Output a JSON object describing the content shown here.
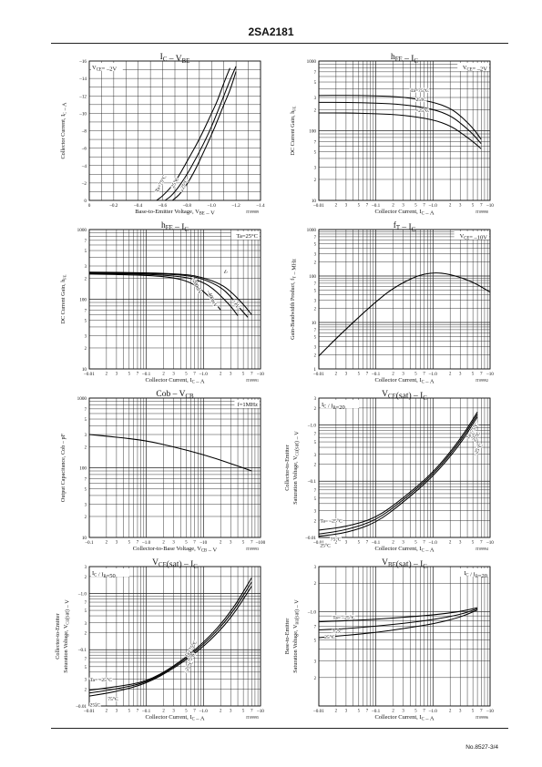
{
  "page": {
    "title": "2SA2181",
    "doc_number": "No.8527-3/4"
  },
  "chart_data": [
    {
      "type": "line",
      "title_main": "I",
      "title_sub": "C",
      "title_mid": " – V",
      "title_sub2": "BE",
      "xlabel": "Base-to-Emitter Voltage, V",
      "xlabel_sub": "BE",
      "xlabel_tail": " – V",
      "ylabel": "Collector Current, I",
      "ylabel_sub": "C",
      "ylabel_tail": " – A",
      "code": "IT09989",
      "xscale": "linear",
      "yscale": "linear",
      "xlim": [
        0,
        -1.4
      ],
      "ylim": [
        0,
        -16
      ],
      "xticks": [
        0,
        -0.2,
        -0.4,
        -0.6,
        -0.8,
        -1.0,
        -1.2,
        -1.4
      ],
      "xticklabels": [
        "0",
        "–0.2",
        "–0.4",
        "–0.6",
        "–0.8",
        "–1.0",
        "–1.2",
        "–1.4"
      ],
      "yticks": [
        0,
        -2,
        -4,
        -6,
        -8,
        -10,
        -12,
        -14,
        -16
      ],
      "yticklabels": [
        "0",
        "–2",
        "–4",
        "–6",
        "–8",
        "–10",
        "–12",
        "–14",
        "–16"
      ],
      "minor_x": 0.1,
      "minor_y": 1,
      "condition": "V<sub>CE</sub>= –2V",
      "condition_pos": "top-left",
      "series": [
        {
          "name": "Ta=75°C",
          "x": [
            -0.55,
            -0.6,
            -0.7,
            -0.8,
            -0.9,
            -1.0,
            -1.05,
            -1.1,
            -1.15
          ],
          "y": [
            0,
            -0.5,
            -2,
            -4.5,
            -7,
            -10,
            -11.5,
            -13.5,
            -15.2
          ]
        },
        {
          "name": "25°C",
          "x": [
            -0.62,
            -0.68,
            -0.78,
            -0.88,
            -0.98,
            -1.05,
            -1.1,
            -1.15,
            -1.2
          ],
          "y": [
            0,
            -0.6,
            -2.5,
            -5,
            -7.8,
            -10.2,
            -12,
            -13.8,
            -15.4
          ]
        },
        {
          "name": "–25°C",
          "x": [
            -0.68,
            -0.75,
            -0.85,
            -0.95,
            -1.03,
            -1.1,
            -1.15,
            -1.2
          ],
          "y": [
            0,
            -0.8,
            -3,
            -6,
            -8.5,
            -11,
            -12.6,
            -14.8
          ]
        }
      ],
      "labels": [
        {
          "text": "Ta=75°C",
          "x": -0.56,
          "y": -0.9,
          "angle": -62
        },
        {
          "text": "25°C",
          "x": -0.69,
          "y": -1.4,
          "angle": -62
        },
        {
          "text": "–25°C",
          "x": -0.76,
          "y": -1.0,
          "angle": -62
        }
      ]
    },
    {
      "type": "line",
      "title_main": "h",
      "title_sub": "FE",
      "title_mid": " – I",
      "title_sub2": "C",
      "xlabel": "Collector Current, I",
      "xlabel_sub": "C",
      "xlabel_tail": " – A",
      "ylabel": "DC Current Gain, h",
      "ylabel_sub": "FE",
      "ylabel_tail": "",
      "code": "IT09990",
      "xscale": "log",
      "yscale": "log",
      "xlim": [
        -0.01,
        -10
      ],
      "ylim": [
        10,
        1000
      ],
      "xmajor": [
        -0.01,
        -0.1,
        -1.0,
        -10
      ],
      "xticklabels": [
        "–0.01",
        "–0.1",
        "–1.0",
        "–10"
      ],
      "ymajor": [
        10,
        100,
        1000
      ],
      "yticklabels": [
        "10",
        "100",
        "1000"
      ],
      "condition": "V<sub>CE</sub>= –2V",
      "condition_pos": "top-right",
      "series": [
        {
          "name": "Ta=75°C",
          "x": [
            -0.01,
            -0.03,
            -0.1,
            -0.3,
            -1,
            -2,
            -3,
            -5,
            -7
          ],
          "y": [
            320,
            322,
            318,
            305,
            260,
            210,
            165,
            110,
            75
          ]
        },
        {
          "name": "25°C",
          "x": [
            -0.01,
            -0.03,
            -0.1,
            -0.3,
            -1,
            -2,
            -3,
            -5,
            -7
          ],
          "y": [
            255,
            255,
            250,
            238,
            205,
            165,
            130,
            90,
            65
          ]
        },
        {
          "name": "–25°C",
          "x": [
            -0.01,
            -0.03,
            -0.1,
            -0.3,
            -1,
            -2,
            -3,
            -5,
            -7
          ],
          "y": [
            180,
            180,
            176,
            168,
            145,
            118,
            95,
            70,
            55
          ]
        }
      ],
      "labels": [
        {
          "text": "Ta=75°C",
          "x": -0.4,
          "y": 360,
          "angle": 0
        },
        {
          "text": "25°C",
          "x": -0.5,
          "y": 265,
          "angle": 0
        },
        {
          "text": "–25°C",
          "x": -0.5,
          "y": 185,
          "angle": 0
        }
      ]
    },
    {
      "type": "line",
      "title_main": "h",
      "title_sub": "FE",
      "title_mid": " – I",
      "title_sub2": "C",
      "xlabel": "Collector Current, I",
      "xlabel_sub": "C",
      "xlabel_tail": " – A",
      "ylabel": "DC Current Gain, h",
      "ylabel_sub": "FE",
      "ylabel_tail": "",
      "code": "IT09991",
      "xscale": "log",
      "yscale": "log",
      "xlim": [
        -0.01,
        -10
      ],
      "ylim": [
        10,
        1000
      ],
      "xmajor": [
        -0.01,
        -0.1,
        -1.0,
        -10
      ],
      "xticklabels": [
        "–0.01",
        "–0.1",
        "–1.0",
        "–10"
      ],
      "ymajor": [
        10,
        100,
        1000
      ],
      "yticklabels": [
        "10",
        "100",
        "1000"
      ],
      "condition": "Ta=25°C",
      "condition_pos": "top-right",
      "series": [
        {
          "name": "VCE= –2V",
          "x": [
            -0.01,
            -0.1,
            -0.5,
            -1,
            -2,
            -3,
            -5,
            -7
          ],
          "y": [
            245,
            240,
            228,
            205,
            165,
            130,
            85,
            60
          ]
        },
        {
          "name": "–1V",
          "x": [
            -0.01,
            -0.1,
            -0.5,
            -1,
            -2,
            -3,
            -4,
            -6
          ],
          "y": [
            240,
            236,
            222,
            195,
            150,
            110,
            80,
            55
          ]
        },
        {
          "name": "–400mV",
          "x": [
            -0.01,
            -0.1,
            -0.5,
            -1,
            -1.5,
            -2,
            -3,
            -4
          ],
          "y": [
            235,
            230,
            210,
            175,
            140,
            112,
            80,
            58
          ]
        },
        {
          "name": "–200mV",
          "x": [
            -0.01,
            -0.1,
            -0.3,
            -0.6,
            -1,
            -1.5,
            -2
          ],
          "y": [
            230,
            222,
            205,
            175,
            130,
            95,
            70
          ]
        }
      ],
      "labels": [
        {
          "text": "V",
          "x": -2.2,
          "y": 250,
          "angle": 55
        },
        {
          "text": "–200mV",
          "x": -0.62,
          "y": 200,
          "angle": 65
        },
        {
          "text": "–400mV",
          "x": -1.15,
          "y": 130,
          "angle": 65
        },
        {
          "text": "–1V",
          "x": -3.3,
          "y": 95,
          "angle": 65
        }
      ]
    },
    {
      "type": "line",
      "title_main": "f",
      "title_sub": "T",
      "title_mid": " – I",
      "title_sub2": "C",
      "xlabel": "Collector Current, I",
      "xlabel_sub": "C",
      "xlabel_tail": " – A",
      "ylabel": "Gain-Bandwidth Product, f",
      "ylabel_sub": "T",
      "ylabel_tail": " – MHz",
      "code": "IT09992",
      "xscale": "log",
      "yscale": "log",
      "xlim": [
        -0.01,
        -10
      ],
      "ylim": [
        1,
        1000
      ],
      "xmajor": [
        -0.01,
        -0.1,
        -1.0,
        -10
      ],
      "xticklabels": [
        "–0.01",
        "–0.1",
        "–1.0",
        "–10"
      ],
      "ymajor": [
        1,
        10,
        100,
        1000
      ],
      "yticklabels": [
        "1",
        "10",
        "100",
        "1000"
      ],
      "condition": "V<sub>CE</sub>= –10V",
      "condition_pos": "top-right",
      "series": [
        {
          "name": "",
          "x": [
            -0.01,
            -0.02,
            -0.05,
            -0.1,
            -0.2,
            -0.5,
            -1,
            -2,
            -5,
            -10
          ],
          "y": [
            1.9,
            4.5,
            13,
            28,
            55,
            100,
            120,
            110,
            75,
            45
          ]
        }
      ],
      "labels": []
    },
    {
      "type": "line",
      "title_main": "Cob",
      "title_sub": "",
      "title_mid": " – V",
      "title_sub2": "CB",
      "xlabel": "Collector-to-Base Voltage, V",
      "xlabel_sub": "CB",
      "xlabel_tail": " – V",
      "ylabel": "Output Capacitance, Cob",
      "ylabel_sub": "",
      "ylabel_tail": " – pF",
      "code": "IT09993",
      "xscale": "log",
      "yscale": "log",
      "xlim": [
        -0.1,
        -100
      ],
      "ylim": [
        10,
        1000
      ],
      "xmajor": [
        -0.1,
        -1.0,
        -10,
        -100
      ],
      "xticklabels": [
        "–0.1",
        "–1.0",
        "–10",
        "–100"
      ],
      "ymajor": [
        10,
        100,
        1000
      ],
      "yticklabels": [
        "10",
        "100",
        "1000"
      ],
      "condition": "f=1MHz",
      "condition_pos": "top-right",
      "series": [
        {
          "name": "",
          "x": [
            -0.1,
            -0.3,
            -1,
            -3,
            -10,
            -30,
            -70
          ],
          "y": [
            300,
            275,
            245,
            200,
            155,
            115,
            90
          ]
        }
      ],
      "labels": []
    },
    {
      "type": "line",
      "title_main": "V",
      "title_sub": "CE",
      "title_mid": "(sat) – I",
      "title_sub2": "C",
      "xlabel": "Collector Current, I",
      "xlabel_sub": "C",
      "xlabel_tail": " – A",
      "ylabel": "Collector-to-Emitter",
      "ylabel2": "Saturation Voltage, V",
      "ylabel_sub": "CE",
      "ylabel_tail": "(sat) – V",
      "code": "IT09994",
      "xscale": "log",
      "yscale": "log",
      "xlim": [
        -0.01,
        -10
      ],
      "ylim": [
        -0.01,
        -3
      ],
      "xmajor": [
        -0.01,
        -0.1,
        -1.0,
        -10
      ],
      "xticklabels": [
        "–0.01",
        "–0.1",
        "–1.0",
        "–10"
      ],
      "ymajor": [
        -0.01,
        -0.1,
        -1.0
      ],
      "yticklabels": [
        "–0.01",
        "–0.1",
        "–1.0"
      ],
      "condition": "I<sub>C</sub> / I<sub>B</sub>=20",
      "condition_pos": "top-left",
      "series": [
        {
          "name": "Ta=75°C",
          "x": [
            -0.01,
            -0.03,
            -0.1,
            -0.3,
            -1,
            -3,
            -6
          ],
          "y": [
            -0.0135,
            -0.0155,
            -0.022,
            -0.05,
            -0.14,
            -0.55,
            -1.7
          ]
        },
        {
          "name": "25°C",
          "x": [
            -0.01,
            -0.03,
            -0.1,
            -0.3,
            -1,
            -3,
            -6
          ],
          "y": [
            -0.0115,
            -0.0135,
            -0.02,
            -0.046,
            -0.13,
            -0.5,
            -1.55
          ]
        },
        {
          "name": "–25°C",
          "x": [
            -0.01,
            -0.03,
            -0.1,
            -0.3,
            -1,
            -3,
            -6
          ],
          "y": [
            -0.0105,
            -0.012,
            -0.018,
            -0.042,
            -0.12,
            -0.45,
            -1.4
          ]
        }
      ],
      "labels": [
        {
          "text": "Ta= –25°C",
          "x": -0.0105,
          "y": -0.0185,
          "angle": 0
        },
        {
          "text": "75°C",
          "x": -0.016,
          "y": -0.0088,
          "angle": 0
        },
        {
          "text": "25°C",
          "x": -0.0105,
          "y": -0.0068,
          "angle": 0
        },
        {
          "text": "Ta=75°C",
          "x": -4.2,
          "y": -0.55,
          "angle": -58
        },
        {
          "text": "25°C",
          "x": -5.4,
          "y": -0.5,
          "angle": -58
        },
        {
          "text": "–25°C",
          "x": -5.6,
          "y": -0.28,
          "angle": -58
        }
      ]
    },
    {
      "type": "line",
      "title_main": "V",
      "title_sub": "CE",
      "title_mid": "(sat) – I",
      "title_sub2": "C",
      "xlabel": "Collector Current, I",
      "xlabel_sub": "C",
      "xlabel_tail": " – A",
      "ylabel": "Collector-to-Emitter",
      "ylabel2": "Saturation Voltage, V",
      "ylabel_sub": "CE",
      "ylabel_tail": "(sat) – V",
      "code": "IT09995",
      "xscale": "log",
      "yscale": "log",
      "xlim": [
        -0.01,
        -10
      ],
      "ylim": [
        -0.01,
        -3
      ],
      "xmajor": [
        -0.01,
        -0.1,
        -1.0,
        -10
      ],
      "xticklabels": [
        "–0.01",
        "–0.1",
        "–1.0",
        "–10"
      ],
      "ymajor": [
        -0.01,
        -0.1,
        -1.0
      ],
      "yticklabels": [
        "–0.01",
        "–0.1",
        "–1.0"
      ],
      "condition": "I<sub>C</sub> / I<sub>B</sub>=50",
      "condition_pos": "top-left",
      "series": [
        {
          "name": "Ta=75°C",
          "x": [
            -0.01,
            -0.03,
            -0.1,
            -0.3,
            -1,
            -3,
            -7
          ],
          "y": [
            -0.019,
            -0.022,
            -0.027,
            -0.05,
            -0.13,
            -0.45,
            -1.9
          ]
        },
        {
          "name": "25°C",
          "x": [
            -0.01,
            -0.03,
            -0.1,
            -0.3,
            -1,
            -3,
            -7
          ],
          "y": [
            -0.017,
            -0.02,
            -0.026,
            -0.048,
            -0.12,
            -0.4,
            -1.6
          ]
        },
        {
          "name": "–25°C",
          "x": [
            -0.01,
            -0.03,
            -0.1,
            -0.3,
            -1,
            -3,
            -7
          ],
          "y": [
            -0.015,
            -0.018,
            -0.025,
            -0.046,
            -0.11,
            -0.35,
            -1.35
          ]
        }
      ],
      "labels": [
        {
          "text": "Ta= –25°C",
          "x": -0.0102,
          "y": -0.0275,
          "angle": 0
        },
        {
          "text": "75°C",
          "x": -0.021,
          "y": -0.0125,
          "angle": 0
        },
        {
          "text": "25°C",
          "x": -0.0102,
          "y": -0.0098,
          "angle": 0
        },
        {
          "text": "Ta=75°C",
          "x": -0.52,
          "y": -0.072,
          "angle": -58
        },
        {
          "text": "25°C",
          "x": -0.58,
          "y": -0.058,
          "angle": -58
        },
        {
          "text": "–25°C",
          "x": -0.5,
          "y": -0.038,
          "angle": -58
        }
      ]
    },
    {
      "type": "line",
      "title_main": "V",
      "title_sub": "BE",
      "title_mid": "(sat) – I",
      "title_sub2": "C",
      "xlabel": "Collector Current, I",
      "xlabel_sub": "C",
      "xlabel_tail": " – A",
      "ylabel": "Base-to-Emitter",
      "ylabel2": "Saturation Voltage, V",
      "ylabel_sub": "BE",
      "ylabel_tail": "(sat) – V",
      "code": "IT09996",
      "xscale": "log",
      "yscale": "log",
      "xlim": [
        -0.01,
        -10
      ],
      "ylim": [
        -0.1,
        -3
      ],
      "xmajor": [
        -0.01,
        -0.1,
        -1.0,
        -10
      ],
      "xticklabels": [
        "–0.01",
        "–0.1",
        "–1.0",
        "–10"
      ],
      "ymajor": [
        -0.1,
        -1.0
      ],
      "yticklabels": [
        "",
        "–1.0"
      ],
      "condition": "I<sub>C</sub> / I<sub>B</sub>=20",
      "condition_pos": "top-right",
      "series": [
        {
          "name": "Ta= –25°C",
          "x": [
            -0.01,
            -0.03,
            -0.1,
            -0.3,
            -1,
            -3,
            -6
          ],
          "y": [
            -0.78,
            -0.8,
            -0.83,
            -0.87,
            -0.92,
            -1.0,
            -1.1
          ]
        },
        {
          "name": "25°C",
          "x": [
            -0.01,
            -0.03,
            -0.1,
            -0.3,
            -1,
            -3,
            -6
          ],
          "y": [
            -0.64,
            -0.66,
            -0.7,
            -0.75,
            -0.82,
            -0.93,
            -1.07
          ]
        },
        {
          "name": "75°C",
          "x": [
            -0.01,
            -0.03,
            -0.1,
            -0.3,
            -1,
            -3,
            -6
          ],
          "y": [
            -0.53,
            -0.56,
            -0.6,
            -0.66,
            -0.74,
            -0.87,
            -1.04
          ]
        }
      ],
      "labels": [
        {
          "text": "Ta= –25°C",
          "x": -0.0175,
          "y": -0.84,
          "angle": 0
        },
        {
          "text": "75°C",
          "x": -0.017,
          "y": -0.59,
          "angle": 0
        },
        {
          "text": "25°C",
          "x": -0.0125,
          "y": -0.52,
          "angle": 0
        }
      ]
    }
  ]
}
